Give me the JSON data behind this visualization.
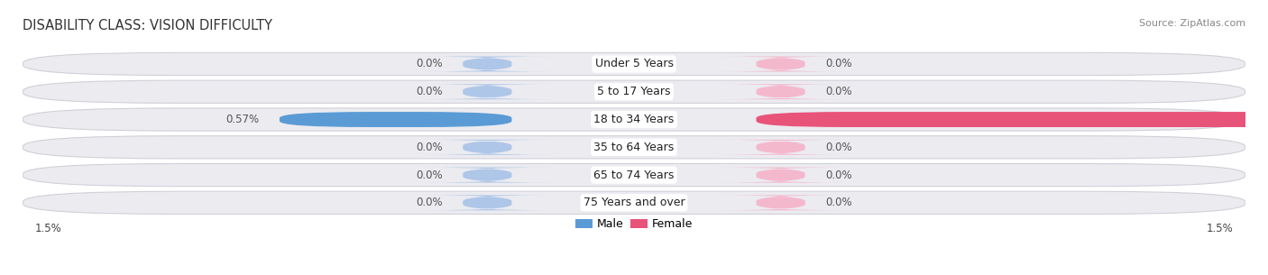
{
  "title": "DISABILITY CLASS: VISION DIFFICULTY",
  "source": "Source: ZipAtlas.com",
  "categories": [
    "Under 5 Years",
    "5 to 17 Years",
    "18 to 34 Years",
    "35 to 64 Years",
    "65 to 74 Years",
    "75 Years and over"
  ],
  "male_values": [
    0.0,
    0.0,
    0.57,
    0.0,
    0.0,
    0.0
  ],
  "female_values": [
    0.0,
    0.0,
    1.5,
    0.0,
    0.0,
    0.0
  ],
  "male_color_light": "#aec6e8",
  "female_color_light": "#f4b8cc",
  "male_color_strong": "#5b9bd5",
  "female_color_strong": "#e8537a",
  "row_bg_color": "#ebebf0",
  "axis_max": 1.5,
  "stub_size": 0.12,
  "x_left_label": "1.5%",
  "x_right_label": "1.5%",
  "legend_male": "Male",
  "legend_female": "Female",
  "title_fontsize": 10.5,
  "source_fontsize": 8,
  "label_fontsize": 8.5,
  "category_fontsize": 9
}
